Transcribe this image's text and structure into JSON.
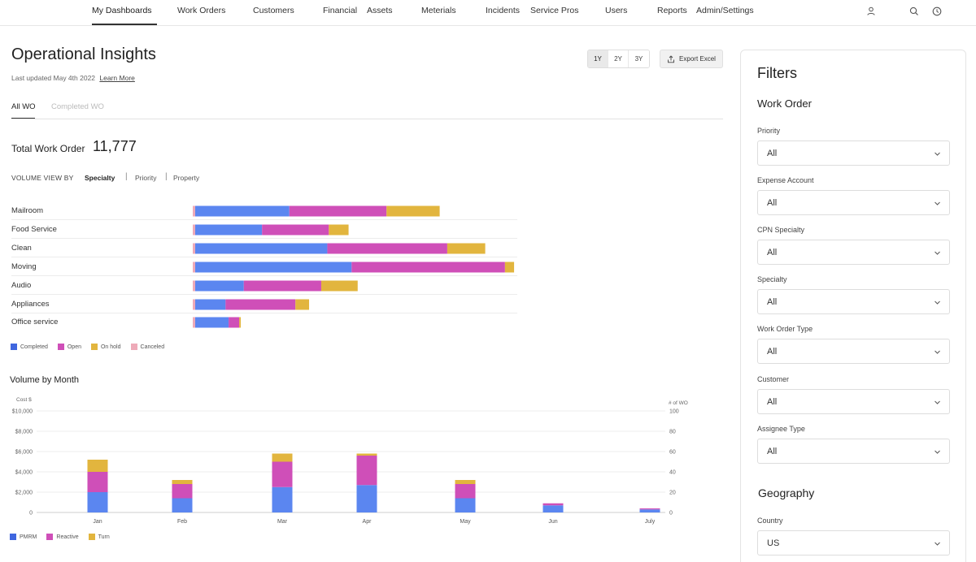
{
  "nav": {
    "items": [
      "My Dashboards",
      "Work Orders",
      "Customers",
      "Financial",
      "Assets",
      "Meterials",
      "Incidents",
      "Service Pros",
      "Users",
      "Reports",
      "Admin/Settings"
    ],
    "active": "My Dashboards",
    "icons": [
      "user-icon",
      "search-icon",
      "clock-icon"
    ]
  },
  "header": {
    "title": "Operational Insights",
    "last_updated": "Last updated May 4th 2022",
    "learn_more": "Learn More",
    "ranges": [
      "1Y",
      "2Y",
      "3Y"
    ],
    "active_range": "1Y",
    "export_label": "Export Excel"
  },
  "tabs": [
    "All WO",
    "Completed WO"
  ],
  "active_tab": "All WO",
  "total": {
    "label": "Total Work Order",
    "value": "11,777"
  },
  "volume_view": {
    "label": "VOLUME VIEW BY",
    "options": [
      "Specialty",
      "Priority",
      "Property"
    ],
    "active": "Specialty"
  },
  "colors": {
    "completed": "#5b86f0",
    "open": "#cf4fb8",
    "on_hold": "#e2b53e",
    "canceled": "#eeaab8",
    "pmrm": "#5b86f0",
    "reactive": "#cf4fb8",
    "turn": "#e2b53e"
  },
  "chart_data": [
    {
      "type": "bar",
      "orientation": "horizontal",
      "stacked": true,
      "categories": [
        "Mailroom",
        "Food Service",
        "Clean",
        "Moving",
        "Audio",
        "Appliances",
        "Office service"
      ],
      "series": [
        {
          "name": "Completed",
          "values": [
            620,
            440,
            870,
            1030,
            320,
            200,
            220
          ]
        },
        {
          "name": "Open",
          "values": [
            640,
            440,
            790,
            1010,
            510,
            460,
            70
          ]
        },
        {
          "name": "On hold",
          "values": [
            350,
            130,
            250,
            60,
            240,
            90,
            10
          ]
        },
        {
          "name": "Canceled",
          "values": [
            0,
            0,
            0,
            0,
            0,
            0,
            0
          ]
        }
      ],
      "legend_position": "bottom-left"
    },
    {
      "type": "bar",
      "stacked": true,
      "title": "Volume by Month",
      "categories": [
        "Jan",
        "Feb",
        "Mar",
        "Apr",
        "May",
        "Jun",
        "July"
      ],
      "series": [
        {
          "name": "PMRM",
          "values": [
            2000,
            1400,
            2500,
            2700,
            1400,
            700,
            300
          ]
        },
        {
          "name": "Reactive",
          "values": [
            2000,
            1400,
            2500,
            2900,
            1400,
            200,
            100
          ]
        },
        {
          "name": "Turn",
          "values": [
            1200,
            400,
            800,
            200,
            400,
            0,
            0
          ]
        }
      ],
      "ylabel": "Cost $",
      "ylim": [
        0,
        10000
      ],
      "yticks": [
        "$10,000",
        "$8,000",
        "$6,000",
        "$4,000",
        "$2,000",
        "0"
      ],
      "y2label": "# of WO",
      "y2lim": [
        0,
        100
      ],
      "y2ticks": [
        "100",
        "80",
        "60",
        "40",
        "20",
        "0"
      ],
      "grid": true,
      "legend_position": "bottom-left"
    }
  ],
  "filters": {
    "title": "Filters",
    "work_order_section": "Work Order",
    "geography_section": "Geography",
    "fields": [
      {
        "label": "Priority",
        "value": "All"
      },
      {
        "label": "Expense Account",
        "value": "All"
      },
      {
        "label": "CPN Specialty",
        "value": "All"
      },
      {
        "label": "Specialty",
        "value": "All"
      },
      {
        "label": "Work Order Type",
        "value": "All"
      },
      {
        "label": "Customer",
        "value": "All"
      },
      {
        "label": "Assignee Type",
        "value": "All"
      }
    ],
    "country": {
      "label": "Country",
      "value": "US"
    }
  }
}
